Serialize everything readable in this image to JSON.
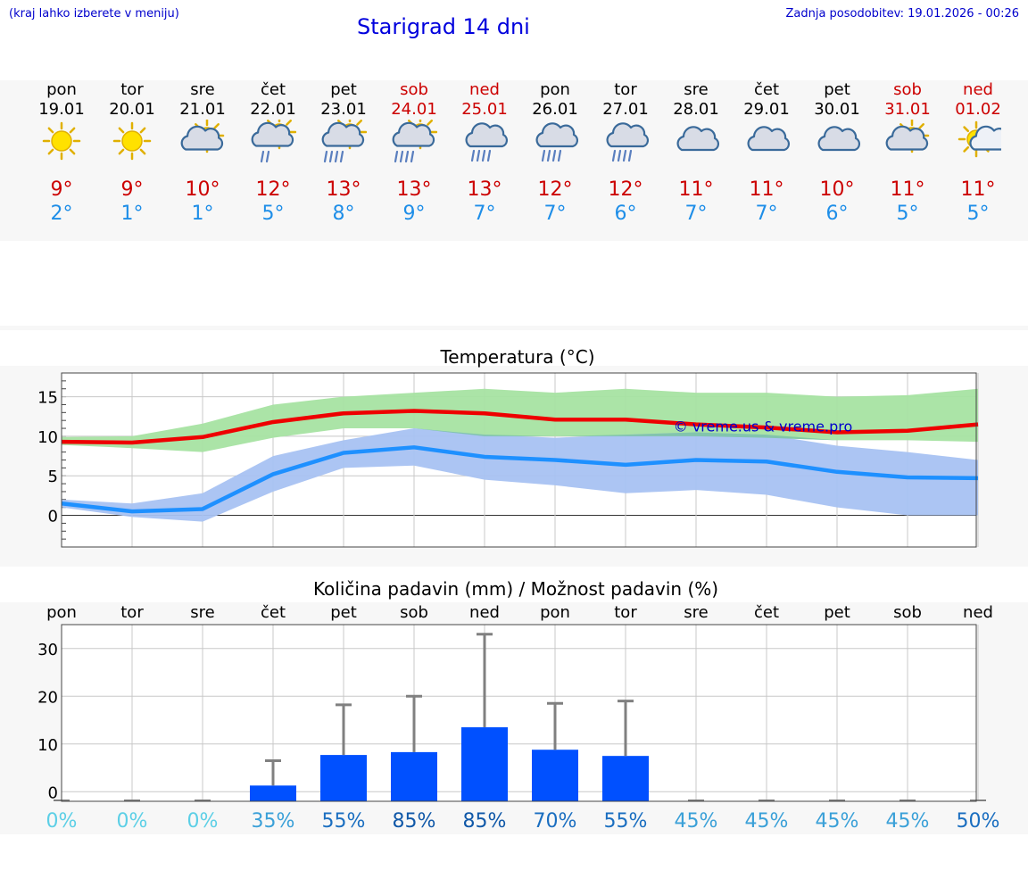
{
  "header": {
    "hint": "(kraj lahko izberete v meniju)",
    "title": "Starigrad 14 dni",
    "update": "Zadnja posodobitev: 19.01.2026 - 00:26"
  },
  "forecast": [
    {
      "day": "pon",
      "date": "19.01",
      "weekend": false,
      "icon": "sun-icon",
      "tmax": "9°",
      "tmin": "2°"
    },
    {
      "day": "tor",
      "date": "20.01",
      "weekend": false,
      "icon": "sun-icon",
      "tmax": "9°",
      "tmin": "1°"
    },
    {
      "day": "sre",
      "date": "21.01",
      "weekend": false,
      "icon": "sun-cloud-icon",
      "tmax": "10°",
      "tmin": "1°"
    },
    {
      "day": "čet",
      "date": "22.01",
      "weekend": false,
      "icon": "sun-cloud-light-rain-icon",
      "tmax": "12°",
      "tmin": "5°"
    },
    {
      "day": "pet",
      "date": "23.01",
      "weekend": false,
      "icon": "sun-cloud-rain-icon",
      "tmax": "13°",
      "tmin": "8°"
    },
    {
      "day": "sob",
      "date": "24.01",
      "weekend": true,
      "icon": "sun-cloud-rain-icon",
      "tmax": "13°",
      "tmin": "9°"
    },
    {
      "day": "ned",
      "date": "25.01",
      "weekend": true,
      "icon": "cloud-rain-icon",
      "tmax": "13°",
      "tmin": "7°"
    },
    {
      "day": "pon",
      "date": "26.01",
      "weekend": false,
      "icon": "cloud-rain-icon",
      "tmax": "12°",
      "tmin": "7°"
    },
    {
      "day": "tor",
      "date": "27.01",
      "weekend": false,
      "icon": "cloud-rain-icon",
      "tmax": "12°",
      "tmin": "6°"
    },
    {
      "day": "sre",
      "date": "28.01",
      "weekend": false,
      "icon": "cloud-icon",
      "tmax": "11°",
      "tmin": "7°"
    },
    {
      "day": "čet",
      "date": "29.01",
      "weekend": false,
      "icon": "cloud-icon",
      "tmax": "11°",
      "tmin": "7°"
    },
    {
      "day": "pet",
      "date": "30.01",
      "weekend": false,
      "icon": "cloud-icon",
      "tmax": "10°",
      "tmin": "6°"
    },
    {
      "day": "sob",
      "date": "31.01",
      "weekend": true,
      "icon": "sun-cloud-icon",
      "tmax": "11°",
      "tmin": "5°"
    },
    {
      "day": "ned",
      "date": "01.02",
      "weekend": true,
      "icon": "sun-small-cloud-icon",
      "tmax": "11°",
      "tmin": "5°"
    }
  ],
  "colors": {
    "max_line": "#ee0000",
    "max_band": "#a6e3a2",
    "min_line": "#1e90ff",
    "min_band": "#a8c2f2",
    "overlap_band": "#7dc4a5",
    "bar": "#0050ff",
    "whisker": "#808080",
    "prob_low": "#5bcfe6",
    "prob_high": "#1060b0"
  },
  "chart_data": [
    {
      "type": "line",
      "title": "Temperatura (°C)",
      "watermark": "© vreme.us & vreme.pro",
      "x": [
        0,
        1,
        2,
        3,
        4,
        5,
        6,
        7,
        8,
        9,
        10,
        11,
        12,
        13
      ],
      "ylim": [
        -4,
        18
      ],
      "yticks": [
        0,
        5,
        10,
        15
      ],
      "series": [
        {
          "name": "max",
          "values": [
            9.3,
            9.2,
            9.9,
            11.8,
            12.9,
            13.2,
            12.9,
            12.1,
            12.1,
            11.5,
            11.1,
            10.5,
            10.7,
            11.5
          ],
          "band_low": [
            8.9,
            8.5,
            8.0,
            9.8,
            11.0,
            11.0,
            10.0,
            10.0,
            10.0,
            10.0,
            9.8,
            9.5,
            9.5,
            9.3
          ],
          "band_high": [
            9.9,
            10.0,
            11.6,
            14.0,
            15.0,
            15.5,
            16.0,
            15.5,
            16.0,
            15.5,
            15.5,
            15.0,
            15.2,
            16.0
          ]
        },
        {
          "name": "min",
          "values": [
            1.5,
            0.5,
            0.8,
            5.2,
            7.9,
            8.6,
            7.4,
            7.0,
            6.4,
            7.0,
            6.8,
            5.5,
            4.8,
            4.7
          ],
          "band_low": [
            1.0,
            -0.2,
            -0.8,
            3.0,
            6.0,
            6.3,
            4.5,
            3.8,
            2.8,
            3.2,
            2.6,
            1.0,
            0.0,
            0.0
          ],
          "band_high": [
            2.0,
            1.5,
            2.8,
            7.5,
            9.5,
            11.0,
            10.2,
            9.8,
            10.2,
            10.5,
            10.2,
            8.8,
            8.0,
            7.0
          ]
        }
      ]
    },
    {
      "type": "bar",
      "title": "Količina padavin (mm) / Možnost padavin (%)",
      "categories": [
        "pon",
        "tor",
        "sre",
        "čet",
        "pet",
        "sob",
        "ned",
        "pon",
        "tor",
        "sre",
        "čet",
        "pet",
        "sob",
        "ned"
      ],
      "values": [
        0,
        0,
        0,
        1.3,
        7.7,
        8.3,
        13.5,
        8.8,
        7.5,
        0,
        0,
        0,
        0,
        0
      ],
      "whisker_max": [
        0,
        0,
        0,
        6.5,
        18.2,
        20.0,
        33.0,
        18.5,
        19.0,
        0,
        0,
        0,
        0,
        0
      ],
      "probability": [
        "0%",
        "0%",
        "0%",
        "35%",
        "55%",
        "85%",
        "85%",
        "70%",
        "55%",
        "45%",
        "45%",
        "45%",
        "45%",
        "50%"
      ],
      "ylim": [
        -2,
        35
      ],
      "yticks": [
        0,
        10,
        20,
        30
      ]
    }
  ]
}
